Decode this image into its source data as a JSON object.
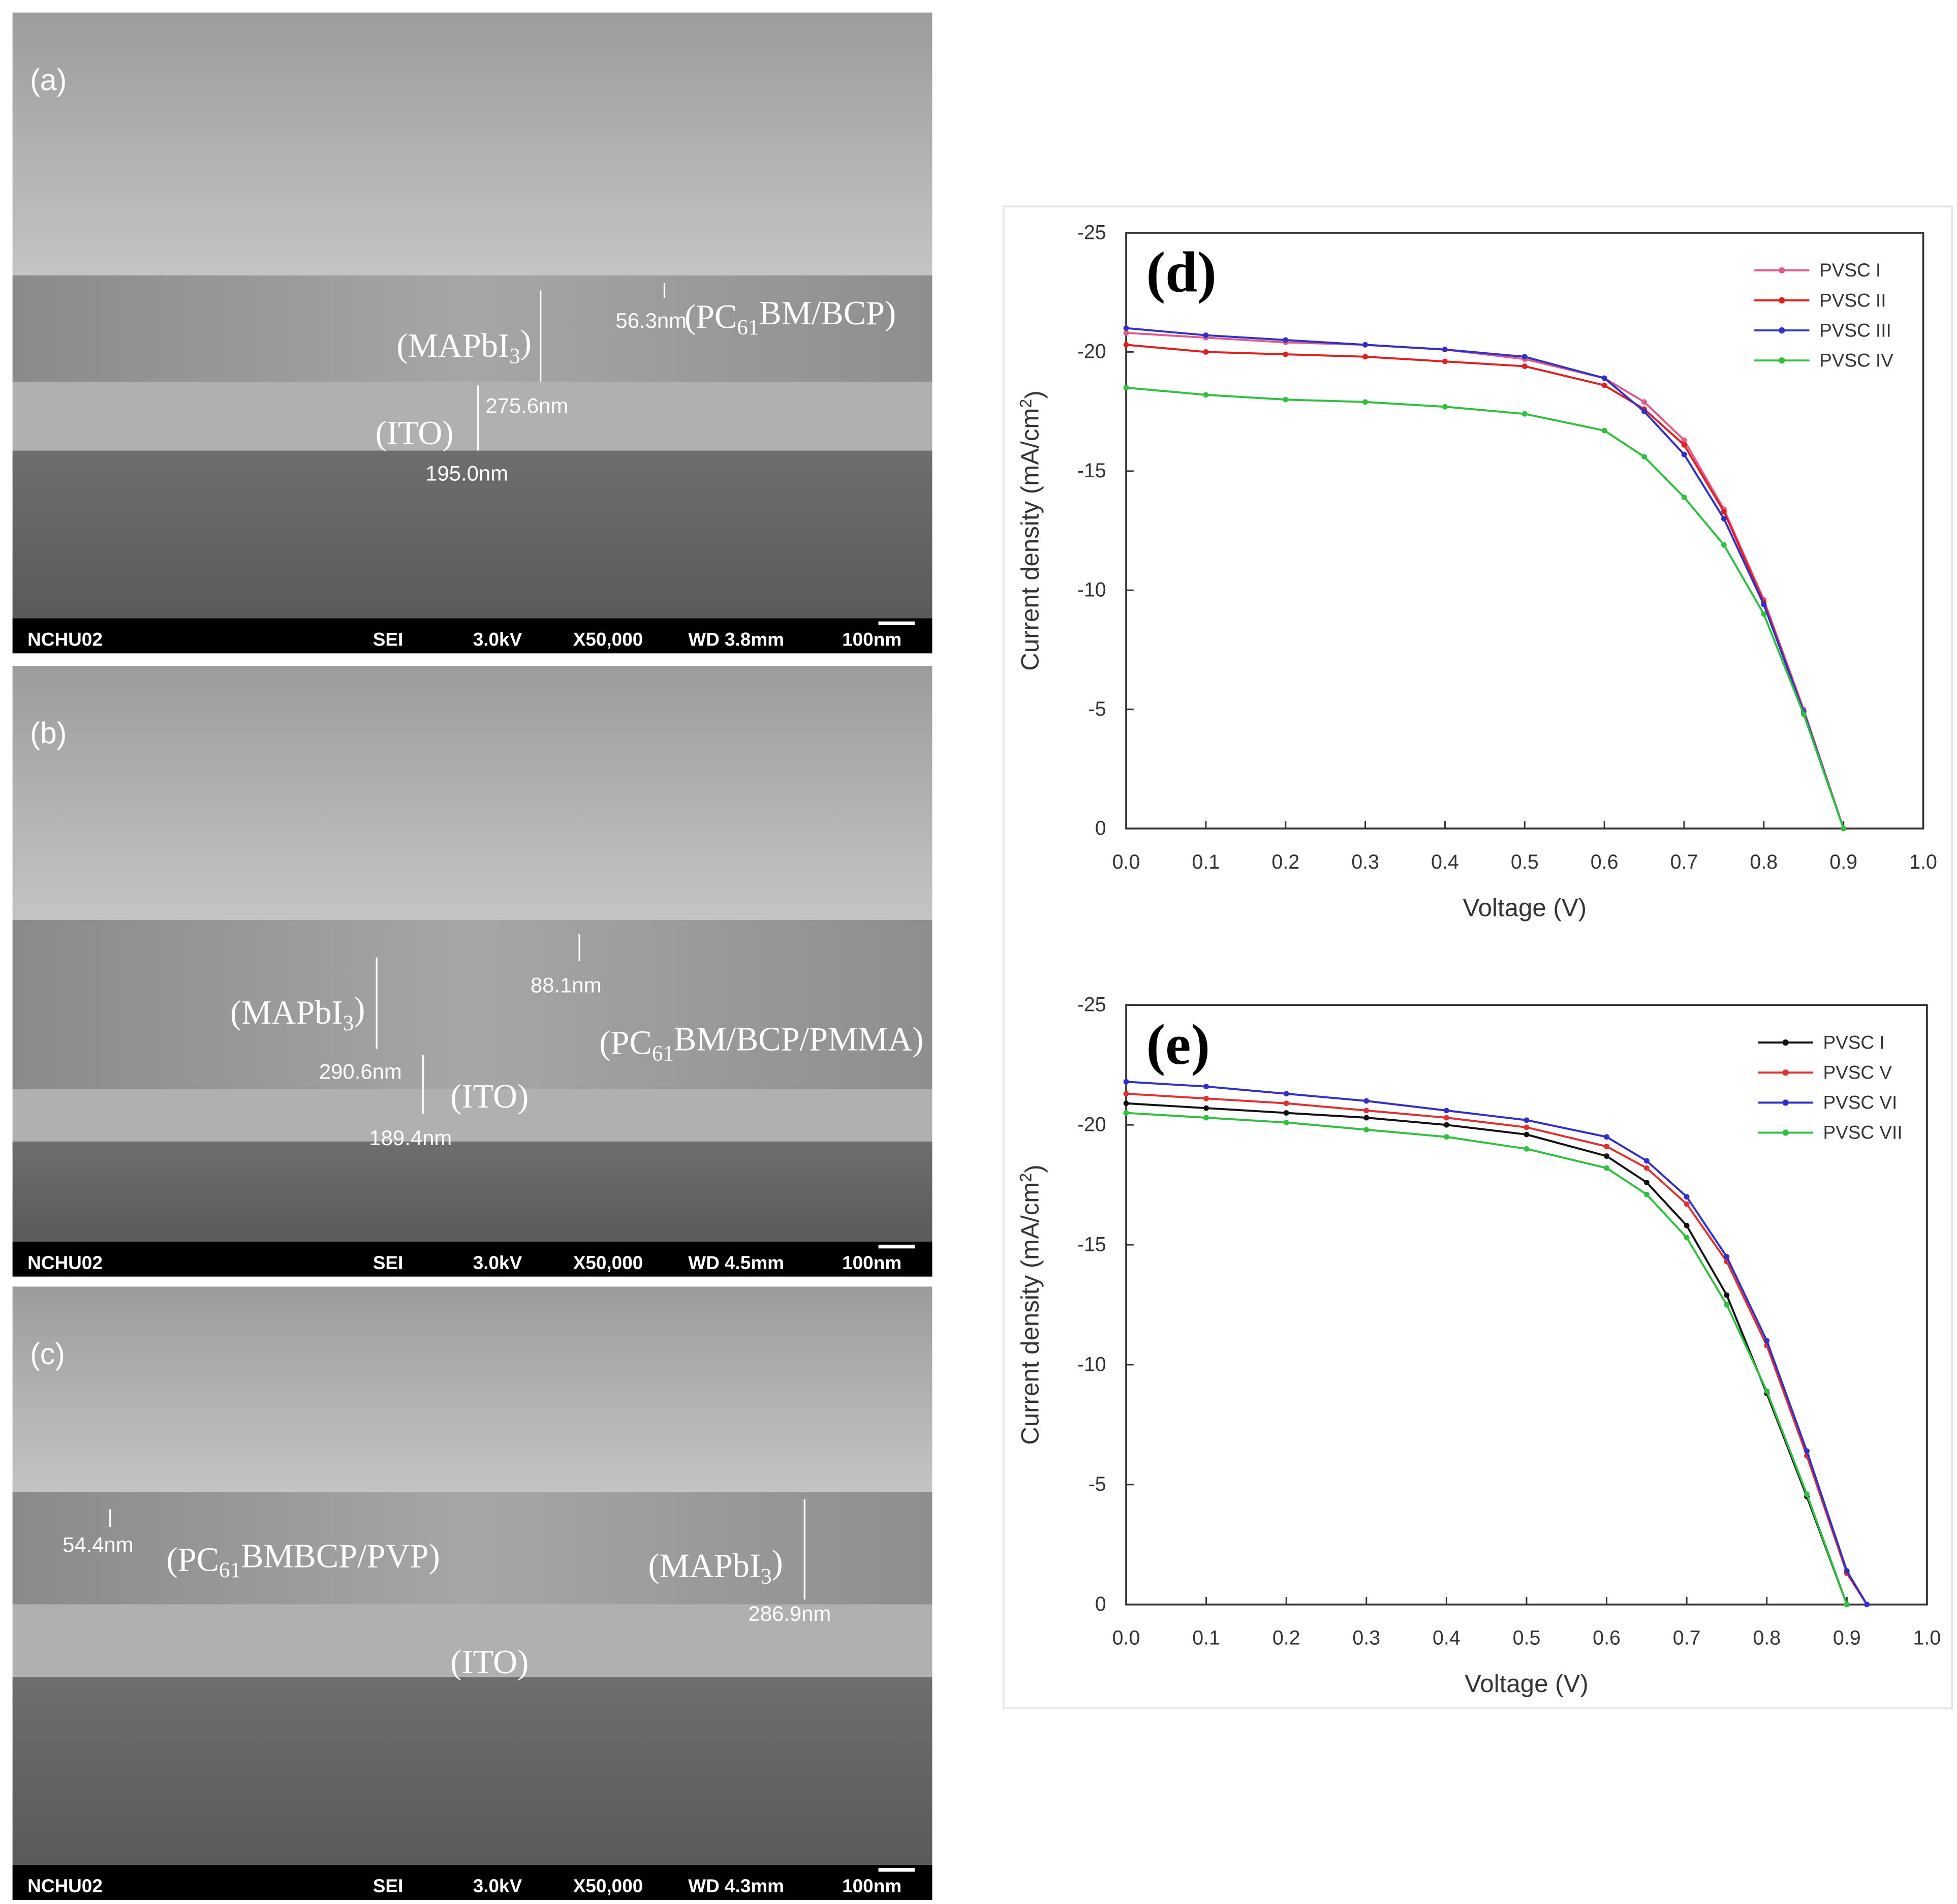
{
  "sem_panels": [
    {
      "label": "(a)",
      "annotations": [
        "56.3nm",
        {
          "text": "(PC",
          "sub": "61",
          "rest": "BM/BCP)"
        },
        {
          "text": "(MAPbI",
          "sub": "3",
          "rest": ")"
        },
        "275.6nm",
        "(ITO)",
        "195.0nm"
      ],
      "footer": [
        "NCHU02",
        "SEI",
        "3.0kV",
        "X50,000",
        "WD 3.8mm",
        "100nm"
      ]
    },
    {
      "label": "(b)",
      "annotations": [
        "88.1nm",
        {
          "text": "(MAPbI",
          "sub": "3",
          "rest": ")"
        },
        {
          "text": "(PC",
          "sub": "61",
          "rest": "BM/BCP/PMMA)"
        },
        "290.6nm",
        "(ITO)",
        "189.4nm"
      ],
      "footer": [
        "NCHU02",
        "SEI",
        "3.0kV",
        "X50,000",
        "WD 4.5mm",
        "100nm"
      ]
    },
    {
      "label": "(c)",
      "annotations": [
        "54.4nm",
        {
          "text": "(PC",
          "sub": "61",
          "rest": "BMBCP/PVP)"
        },
        {
          "text": "(MAPbI",
          "sub": "3",
          "rest": ")"
        },
        "286.9nm",
        "(ITO)"
      ],
      "footer": [
        "NCHU02",
        "SEI",
        "3.0kV",
        "X50,000",
        "WD 4.3mm",
        "100nm"
      ]
    }
  ],
  "chart_data": [
    {
      "type": "line",
      "panel_label": "(d)",
      "x_label": "Voltage (V)",
      "y_label": {
        "text": "Current density (mA/cm",
        "sup": "2",
        "rest": ")"
      },
      "x": [
        0,
        0.1,
        0.2,
        0.3,
        0.4,
        0.5,
        0.6,
        0.65,
        0.7,
        0.75,
        0.8,
        0.85,
        0.9
      ],
      "xlim": [
        0,
        1
      ],
      "ylim": [
        0,
        -25
      ],
      "xticks": [
        {
          "value": 0,
          "label": "0.0"
        },
        0.1,
        0.2,
        0.3,
        0.4,
        0.5,
        0.6,
        0.7,
        0.8,
        0.9,
        {
          "value": 1,
          "label": "1.0"
        }
      ],
      "yticks": [
        0,
        -5,
        -10,
        -15,
        -20,
        -25
      ],
      "legend": "upper right",
      "series": [
        {
          "name": "PVSC I",
          "color": "#e05a8a",
          "values": [
            -20.8,
            -20.6,
            -20.4,
            -20.3,
            -20.1,
            -19.7,
            -18.9,
            -17.9,
            -16.3,
            -13.4,
            -9.6,
            -5.0,
            0
          ]
        },
        {
          "name": "PVSC II",
          "color": "#e02020",
          "values": [
            -20.3,
            -20.0,
            -19.9,
            -19.8,
            -19.6,
            -19.4,
            -18.6,
            -17.6,
            -16.1,
            -13.3,
            -9.5,
            -4.9,
            0
          ]
        },
        {
          "name": "PVSC III",
          "color": "#3030c8",
          "values": [
            -21.0,
            -20.7,
            -20.5,
            -20.3,
            -20.1,
            -19.8,
            -18.9,
            -17.5,
            -15.7,
            -13.0,
            -9.4,
            -4.9,
            0
          ]
        },
        {
          "name": "PVSC IV",
          "color": "#30c040",
          "values": [
            -18.5,
            -18.2,
            -18.0,
            -17.9,
            -17.7,
            -17.4,
            -16.7,
            -15.6,
            -13.9,
            -11.9,
            -9.0,
            -4.8,
            0
          ]
        }
      ]
    },
    {
      "type": "line",
      "panel_label": "(e)",
      "x_label": "Voltage (V)",
      "y_label": {
        "text": "Current density (mA/cm",
        "sup": "2",
        "rest": ")"
      },
      "x": [
        0,
        0.1,
        0.2,
        0.3,
        0.4,
        0.5,
        0.6,
        0.65,
        0.7,
        0.75,
        0.8,
        0.85,
        0.9,
        0.925
      ],
      "xlim": [
        0,
        1
      ],
      "ylim": [
        0,
        -25
      ],
      "xticks": [
        {
          "value": 0,
          "label": "0.0"
        },
        0.1,
        0.2,
        0.3,
        0.4,
        0.5,
        0.6,
        0.7,
        0.8,
        0.9,
        {
          "value": 1,
          "label": "1.0"
        }
      ],
      "yticks": [
        0,
        -5,
        -10,
        -15,
        -20,
        -25
      ],
      "legend": "upper right",
      "series": [
        {
          "name": "PVSC I",
          "color": "#111111",
          "values": [
            -20.9,
            -20.7,
            -20.5,
            -20.3,
            -20.0,
            -19.6,
            -18.7,
            -17.6,
            -15.8,
            -12.9,
            -8.8,
            -4.5,
            0,
            null
          ]
        },
        {
          "name": "PVSC V",
          "color": "#e03030",
          "values": [
            -21.3,
            -21.1,
            -20.9,
            -20.6,
            -20.3,
            -19.9,
            -19.1,
            -18.2,
            -16.7,
            -14.3,
            -10.8,
            -6.2,
            -1.3,
            0
          ]
        },
        {
          "name": "PVSC VI",
          "color": "#3030c8",
          "values": [
            -21.8,
            -21.6,
            -21.3,
            -21.0,
            -20.6,
            -20.2,
            -19.5,
            -18.5,
            -17.0,
            -14.5,
            -11.0,
            -6.4,
            -1.4,
            0
          ]
        },
        {
          "name": "PVSC VII",
          "color": "#30c040",
          "values": [
            -20.5,
            -20.3,
            -20.1,
            -19.8,
            -19.5,
            -19.0,
            -18.2,
            -17.1,
            -15.3,
            -12.5,
            -8.9,
            -4.6,
            0,
            null
          ]
        }
      ]
    }
  ]
}
